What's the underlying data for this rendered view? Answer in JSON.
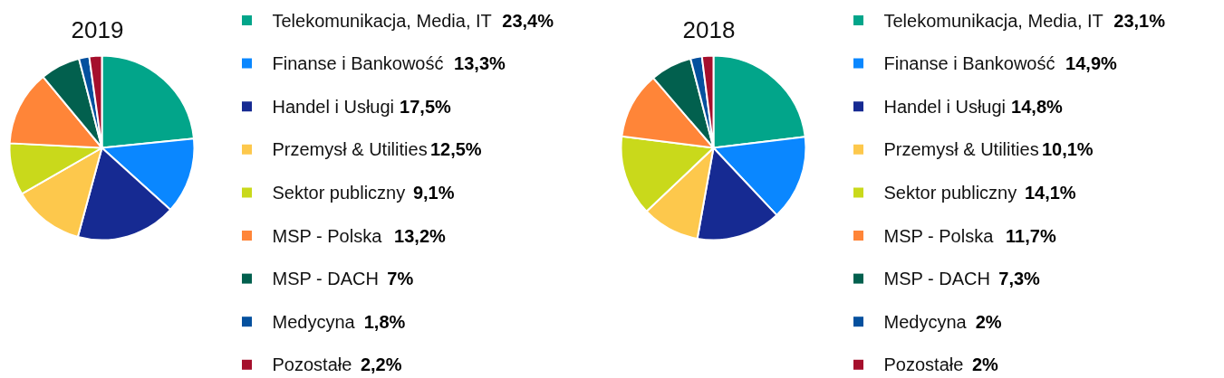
{
  "chart_data": [
    {
      "type": "pie",
      "title": "2019",
      "categories": [
        "Telekomunikacja, Media, IT",
        "Finanse i Bankowość",
        "Handel i Usługi",
        "Przemysł & Utilities",
        "Sektor publiczny",
        "MSP - Polska",
        "MSP - DACH",
        "Medycyna",
        "Pozostałe"
      ],
      "values": [
        23.4,
        13.3,
        17.5,
        12.5,
        9.1,
        13.2,
        7,
        1.8,
        2.2
      ],
      "value_labels": [
        "23,4%",
        "13,3%",
        "17,5%",
        "12,5%",
        "9,1%",
        "13,2%",
        "7%",
        "1,8%",
        "2,2%"
      ],
      "colors": [
        "#02a58a",
        "#0a87ff",
        "#162a92",
        "#fdc84c",
        "#c9d91b",
        "#ff8538",
        "#02604e",
        "#04509e",
        "#a50f2c"
      ],
      "legend": "right"
    },
    {
      "type": "pie",
      "title": "2018",
      "categories": [
        "Telekomunikacja, Media, IT",
        "Finanse i Bankowość",
        "Handel i Usługi",
        "Przemysł & Utilities",
        "Sektor publiczny",
        "MSP - Polska",
        "MSP - DACH",
        "Medycyna",
        "Pozostałe"
      ],
      "values": [
        23.1,
        14.9,
        14.8,
        10.1,
        14.1,
        11.7,
        7.3,
        2,
        2
      ],
      "value_labels": [
        "23,1%",
        "14,9%",
        "14,8%",
        "10,1%",
        "14,1%",
        "11,7%",
        "7,3%",
        "2%",
        "2%"
      ],
      "colors": [
        "#02a58a",
        "#0a87ff",
        "#162a92",
        "#fdc84c",
        "#c9d91b",
        "#ff8538",
        "#02604e",
        "#04509e",
        "#a50f2c"
      ],
      "legend": "right"
    }
  ]
}
